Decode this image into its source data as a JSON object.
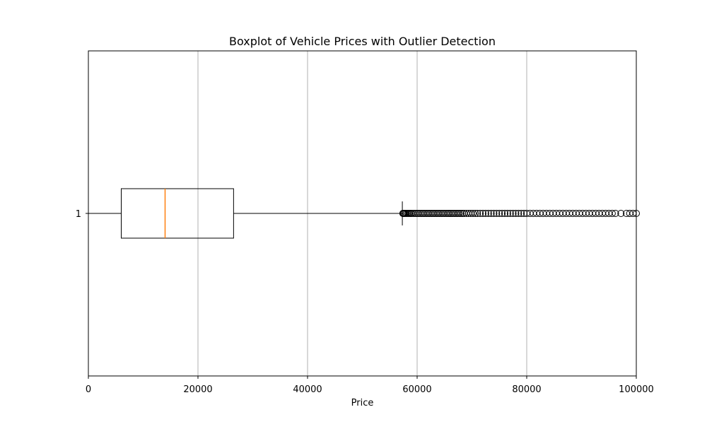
{
  "chart_data": {
    "type": "boxplot",
    "title": "Boxplot of Vehicle Prices with Outlier Detection",
    "xlabel": "Price",
    "ylabel": "",
    "orientation": "horizontal",
    "xlim": [
      0,
      100000
    ],
    "x_ticks": [
      0,
      20000,
      40000,
      60000,
      80000,
      100000
    ],
    "x_tick_labels": [
      "0",
      "20000",
      "40000",
      "60000",
      "80000",
      "100000"
    ],
    "y_tick_labels": [
      "1"
    ],
    "grid": {
      "x": true,
      "y": false
    },
    "boxes": [
      {
        "label": "1",
        "whisker_low": 0,
        "q1": 6000,
        "median": 14000,
        "q3": 26500,
        "whisker_high": 57300,
        "outliers": [
          57400,
          57500,
          57600,
          57800,
          58000,
          58200,
          58400,
          58600,
          58800,
          59000,
          59300,
          59600,
          59900,
          60200,
          60500,
          60800,
          61100,
          61400,
          61700,
          62000,
          62300,
          62600,
          62900,
          63200,
          63500,
          63800,
          64100,
          64400,
          64700,
          65000,
          65300,
          65600,
          65900,
          66200,
          66500,
          66800,
          67100,
          67400,
          67700,
          68000,
          68300,
          68600,
          69000,
          69400,
          69800,
          70200,
          70600,
          71000,
          71500,
          72000,
          72500,
          73000,
          73500,
          74000,
          74500,
          75000,
          75500,
          76000,
          76500,
          77000,
          77500,
          78000,
          78500,
          79000,
          79500,
          80000,
          80600,
          81200,
          81800,
          82400,
          83000,
          83600,
          84200,
          84800,
          85400,
          86000,
          86600,
          87200,
          87800,
          88400,
          89000,
          89600,
          90200,
          90800,
          91400,
          92000,
          92600,
          93200,
          93800,
          94400,
          95000,
          95600,
          96200,
          97200,
          98200,
          98800,
          99400,
          100000
        ]
      }
    ],
    "colors": {
      "box": "#000000",
      "median": "#ff7f0e",
      "grid": "#b0b0b0",
      "outlier": "#000000"
    }
  }
}
